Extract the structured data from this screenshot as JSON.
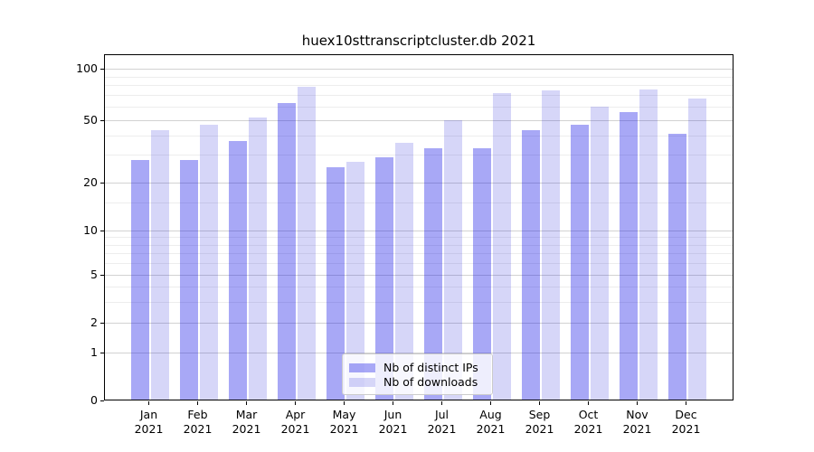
{
  "chart_data": {
    "type": "bar",
    "title": "huex10sttranscriptcluster.db 2021",
    "categories": [
      "Jan",
      "Feb",
      "Mar",
      "Apr",
      "May",
      "Jun",
      "Jul",
      "Aug",
      "Sep",
      "Oct",
      "Nov",
      "Dec"
    ],
    "year": "2021",
    "series": [
      {
        "name": "Nb of distinct IPs",
        "color": "rgba(13,13,230,0.36)",
        "values": [
          28,
          28,
          37,
          63,
          25,
          29,
          33,
          33,
          43,
          47,
          56,
          41
        ]
      },
      {
        "name": "Nb of downloads",
        "color": "rgba(0,0,214,0.16)",
        "values": [
          43,
          47,
          52,
          78,
          27,
          36,
          50,
          72,
          75,
          60,
          76,
          67
        ]
      }
    ],
    "yscale": "symlog",
    "yticks": [
      0,
      1,
      2,
      5,
      10,
      20,
      50,
      100
    ],
    "yticks_minor": [
      3,
      4,
      6,
      7,
      8,
      9,
      15,
      30,
      40,
      60,
      70,
      80,
      90
    ],
    "ylim": [
      0,
      120
    ],
    "xlabel": "",
    "ylabel": "",
    "grid": "on",
    "legend_position": "lower center",
    "colors": {
      "distinct_ips_bar": "#a8a8f2",
      "downloads_bar": "#d9d9f8",
      "grid_major": "#d2d2d2",
      "grid_minor": "#ededed",
      "spine": "#000000"
    }
  }
}
